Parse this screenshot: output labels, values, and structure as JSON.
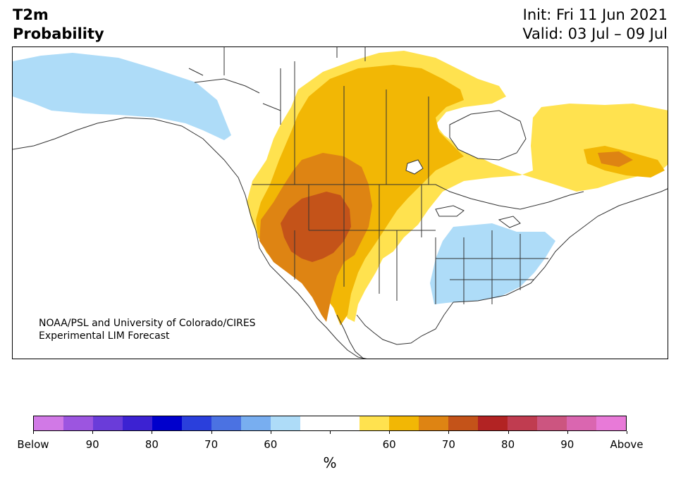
{
  "title": {
    "line1": "T2m",
    "line2": "Probability"
  },
  "dates": {
    "init": "Init: Fri 11 Jun 2021",
    "valid": "Valid: 03 Jul – 09 Jul"
  },
  "credit": {
    "line1": "NOAA/PSL and University of Colorado/CIRES",
    "line2": "Experimental LIM Forecast"
  },
  "map": {
    "region": "North America",
    "legend_categories": {
      "below_60": "#aedcf8",
      "above_50_60": "#ffe24f",
      "above_60_70": "#f2b705",
      "above_70_80": "#de8413",
      "above_80_90": "#c45319"
    }
  },
  "colorbar": {
    "colors": [
      "#d179e6",
      "#9c55e0",
      "#6a3cd9",
      "#3c22d2",
      "#0000cc",
      "#2a3fdc",
      "#4b72e2",
      "#78aef0",
      "#aedcf8",
      "#ffffff",
      "#ffffff",
      "#ffe24f",
      "#f2b705",
      "#de8413",
      "#c45319",
      "#b22323",
      "#c03c50",
      "#cc5580",
      "#da66b0",
      "#e87ad8"
    ],
    "labels": [
      "Below",
      "90",
      "80",
      "70",
      "60",
      "",
      "60",
      "70",
      "80",
      "90",
      "Above"
    ],
    "unit": "%"
  }
}
